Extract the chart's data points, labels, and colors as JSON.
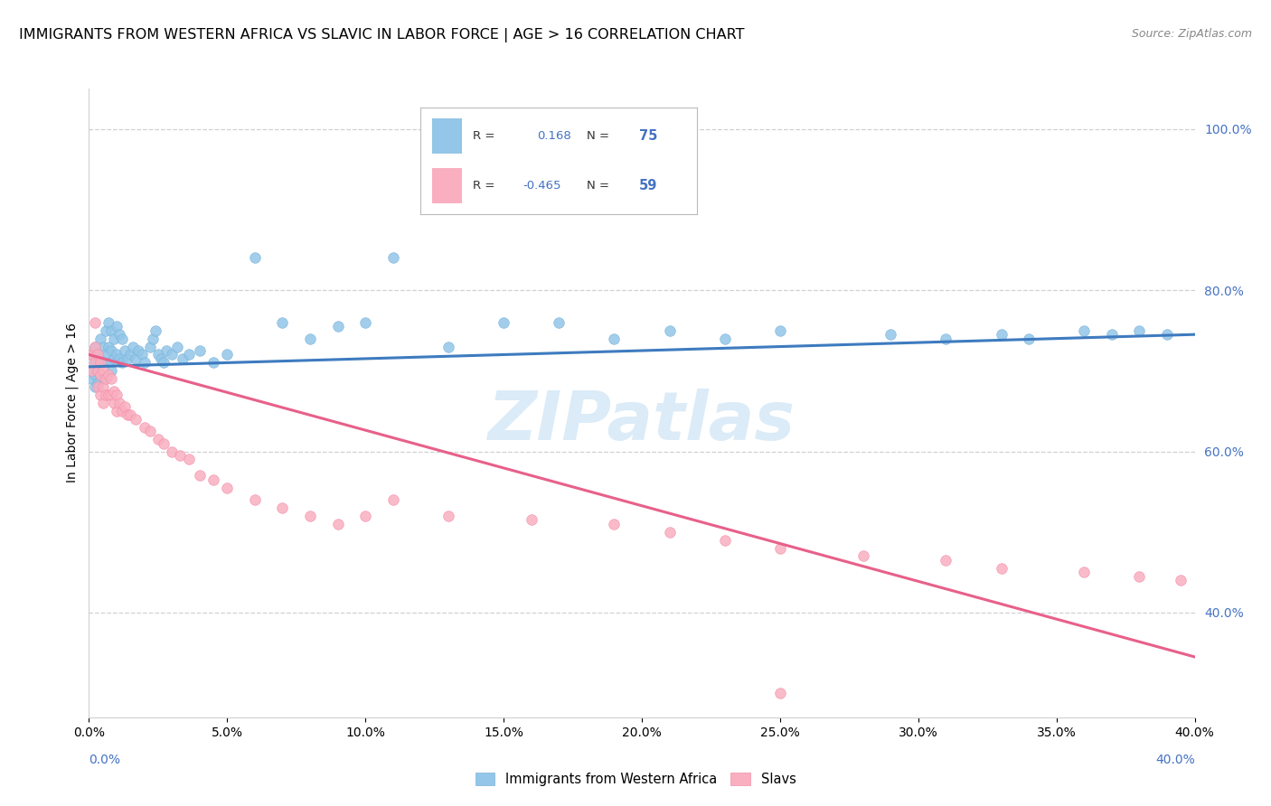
{
  "title": "IMMIGRANTS FROM WESTERN AFRICA VS SLAVIC IN LABOR FORCE | AGE > 16 CORRELATION CHART",
  "source": "Source: ZipAtlas.com",
  "ylabel": "In Labor Force | Age > 16",
  "y_ticks_labels": [
    "100.0%",
    "80.0%",
    "60.0%",
    "40.0%"
  ],
  "y_tick_values": [
    1.0,
    0.8,
    0.6,
    0.4
  ],
  "x_lim": [
    0.0,
    0.4
  ],
  "y_lim": [
    0.27,
    1.05
  ],
  "blue_color": "#93c6e8",
  "pink_color": "#f9afc0",
  "blue_edge_color": "#7ab4da",
  "pink_edge_color": "#f590aa",
  "blue_line_color": "#3e7bbf",
  "pink_line_color": "#e8608a",
  "blue_R": 0.168,
  "blue_N": 75,
  "pink_R": -0.465,
  "pink_N": 59,
  "watermark_text": "ZIPatlas",
  "legend_label_blue": "Immigrants from Western Africa",
  "legend_label_pink": "Slavs",
  "blue_points_x": [
    0.001,
    0.001,
    0.001,
    0.002,
    0.002,
    0.002,
    0.002,
    0.003,
    0.003,
    0.003,
    0.004,
    0.004,
    0.004,
    0.005,
    0.005,
    0.005,
    0.006,
    0.006,
    0.007,
    0.007,
    0.007,
    0.008,
    0.008,
    0.008,
    0.009,
    0.009,
    0.01,
    0.01,
    0.011,
    0.011,
    0.012,
    0.012,
    0.013,
    0.014,
    0.015,
    0.016,
    0.017,
    0.018,
    0.019,
    0.02,
    0.022,
    0.023,
    0.024,
    0.025,
    0.026,
    0.027,
    0.028,
    0.03,
    0.032,
    0.034,
    0.036,
    0.04,
    0.045,
    0.05,
    0.06,
    0.07,
    0.08,
    0.09,
    0.1,
    0.11,
    0.13,
    0.15,
    0.17,
    0.19,
    0.21,
    0.23,
    0.25,
    0.29,
    0.31,
    0.33,
    0.34,
    0.36,
    0.37,
    0.38,
    0.39
  ],
  "blue_points_y": [
    0.72,
    0.7,
    0.69,
    0.73,
    0.71,
    0.695,
    0.68,
    0.72,
    0.7,
    0.685,
    0.74,
    0.715,
    0.695,
    0.73,
    0.71,
    0.69,
    0.75,
    0.72,
    0.76,
    0.73,
    0.71,
    0.75,
    0.725,
    0.7,
    0.74,
    0.715,
    0.755,
    0.72,
    0.745,
    0.715,
    0.74,
    0.71,
    0.725,
    0.715,
    0.72,
    0.73,
    0.715,
    0.725,
    0.72,
    0.71,
    0.73,
    0.74,
    0.75,
    0.72,
    0.715,
    0.71,
    0.725,
    0.72,
    0.73,
    0.715,
    0.72,
    0.725,
    0.71,
    0.72,
    0.84,
    0.76,
    0.74,
    0.755,
    0.76,
    0.84,
    0.73,
    0.76,
    0.76,
    0.74,
    0.75,
    0.74,
    0.75,
    0.745,
    0.74,
    0.745,
    0.74,
    0.75,
    0.745,
    0.75,
    0.745
  ],
  "pink_points_x": [
    0.001,
    0.001,
    0.002,
    0.002,
    0.002,
    0.003,
    0.003,
    0.003,
    0.004,
    0.004,
    0.004,
    0.005,
    0.005,
    0.005,
    0.006,
    0.006,
    0.007,
    0.007,
    0.008,
    0.008,
    0.009,
    0.009,
    0.01,
    0.01,
    0.011,
    0.012,
    0.013,
    0.014,
    0.015,
    0.017,
    0.02,
    0.022,
    0.025,
    0.027,
    0.03,
    0.033,
    0.036,
    0.04,
    0.045,
    0.05,
    0.06,
    0.07,
    0.08,
    0.09,
    0.1,
    0.11,
    0.13,
    0.16,
    0.19,
    0.21,
    0.23,
    0.25,
    0.28,
    0.31,
    0.33,
    0.36,
    0.38,
    0.395,
    0.25
  ],
  "pink_points_y": [
    0.72,
    0.7,
    0.76,
    0.73,
    0.71,
    0.72,
    0.7,
    0.68,
    0.71,
    0.695,
    0.67,
    0.7,
    0.68,
    0.66,
    0.69,
    0.67,
    0.695,
    0.67,
    0.69,
    0.67,
    0.675,
    0.66,
    0.67,
    0.65,
    0.66,
    0.65,
    0.655,
    0.645,
    0.645,
    0.64,
    0.63,
    0.625,
    0.615,
    0.61,
    0.6,
    0.595,
    0.59,
    0.57,
    0.565,
    0.555,
    0.54,
    0.53,
    0.52,
    0.51,
    0.52,
    0.54,
    0.52,
    0.515,
    0.51,
    0.5,
    0.49,
    0.48,
    0.47,
    0.465,
    0.455,
    0.45,
    0.445,
    0.44,
    0.3
  ],
  "blue_trend_x": [
    0.0,
    0.4
  ],
  "blue_trend_y": [
    0.705,
    0.745
  ],
  "pink_trend_x": [
    0.0,
    0.4
  ],
  "pink_trend_y": [
    0.72,
    0.345
  ],
  "grid_color": "#d0d0d0",
  "background_color": "#ffffff",
  "title_fontsize": 11.5,
  "right_tick_color": "#4472c4",
  "bottom_label_color": "#4472c4",
  "x_tick_count": 9
}
